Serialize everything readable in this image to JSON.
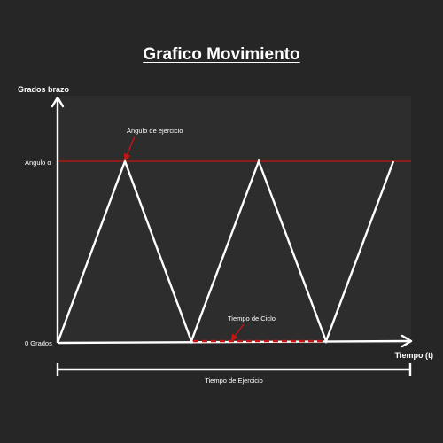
{
  "title": "Grafico Movimiento",
  "y_axis_label": "Grados brazo",
  "x_axis_label": "Tiempo (t)",
  "y_tick_top": "Angulo α",
  "y_tick_bottom": "0 Grados",
  "annotation_angle": "Angulo de ejercicio",
  "annotation_cycle": "Tiempo de Ciclo",
  "exercise_time_label": "Tiempo de Ejercicio",
  "colors": {
    "background": "#262626",
    "plot_area": "#2d2d2d",
    "line": "#ffffff",
    "accent": "#c81414"
  }
}
